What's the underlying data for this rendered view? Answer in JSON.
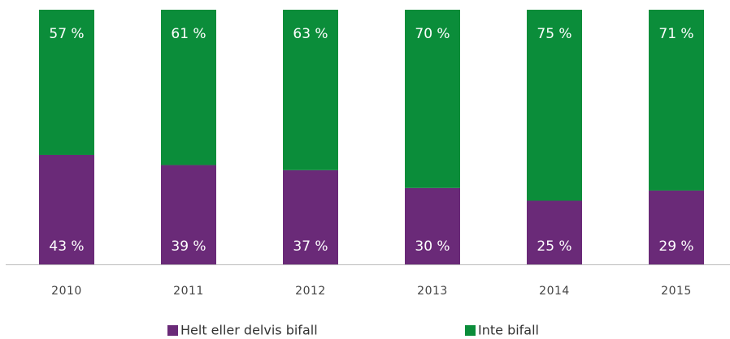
{
  "chart_data": {
    "type": "stacked-bar",
    "categories": [
      "2010",
      "2011",
      "2012",
      "2013",
      "2014",
      "2015"
    ],
    "series": [
      {
        "name": "Helt eller delvis bifall",
        "color": "#6a2a78",
        "values": [
          43,
          39,
          37,
          30,
          25,
          29
        ],
        "value_labels": [
          "43 %",
          "39 %",
          "37 %",
          "30 %",
          "25 %",
          "29 %"
        ]
      },
      {
        "name": "Inte bifall",
        "color": "#0b8d3a",
        "values": [
          57,
          61,
          63,
          70,
          75,
          71
        ],
        "value_labels": [
          "57 %",
          "61 %",
          "63 %",
          "70 %",
          "75 %",
          "71 %"
        ]
      }
    ]
  }
}
